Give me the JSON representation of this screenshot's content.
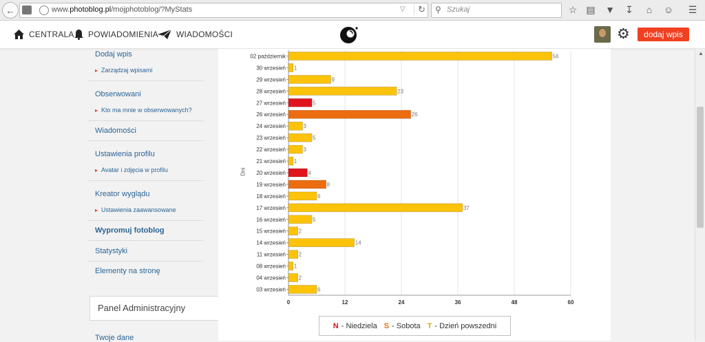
{
  "browser": {
    "url_prefix": "www.",
    "url_domain": "photoblog.pl",
    "url_path": "/mojphotoblog/?MyStats",
    "search_placeholder": "Szukaj"
  },
  "header": {
    "nav": [
      {
        "label": "CENTRALA",
        "icon": "home-icon"
      },
      {
        "label": "POWIADOMIENIA",
        "icon": "bell-icon"
      },
      {
        "label": "WIADOMOŚCI",
        "icon": "paper-plane-icon"
      }
    ],
    "add_button": "dodaj wpis"
  },
  "sidebar": {
    "items": [
      {
        "label": "Dodaj wpis",
        "type": "link"
      },
      {
        "label": "Zarządzaj wpisami",
        "type": "sub"
      },
      {
        "label": "Obserwowani",
        "type": "link"
      },
      {
        "label": "Kto ma mnie w obserwowanych?",
        "type": "sub"
      },
      {
        "label": "Wiadomości",
        "type": "link"
      },
      {
        "label": "Ustawienia profilu",
        "type": "link"
      },
      {
        "label": "Avatar i zdjęcia w profilu",
        "type": "sub"
      },
      {
        "label": "Kreator wyglądu",
        "type": "link"
      },
      {
        "label": "Ustawienia zaawansowane",
        "type": "sub"
      },
      {
        "label": "Wypromuj fotoblog",
        "type": "link"
      },
      {
        "label": "Statystyki",
        "type": "link"
      },
      {
        "label": "Elementy na stronę",
        "type": "link"
      }
    ],
    "panel_title": "Panel Administracyjny",
    "more_link": "Twoje dane"
  },
  "chart_data": {
    "type": "bar",
    "orientation": "horizontal",
    "ylabel": "Dni",
    "xlim": [
      0,
      60
    ],
    "xticks": [
      0,
      12,
      24,
      36,
      48,
      60
    ],
    "grid": true,
    "categories": [
      "02 październik",
      "30 wrzesień",
      "29 wrzesień",
      "28 wrzesień",
      "27 wrzesień",
      "26 wrzesień",
      "24 wrzesień",
      "23 wrzesień",
      "22 wrzesień",
      "21 wrzesień",
      "20 wrzesień",
      "19 wrzesień",
      "18 wrzesień",
      "17 wrzesień",
      "16 wrzesień",
      "15 wrzesień",
      "14 wrzesień",
      "11 wrzesień",
      "08 wrzesień",
      "04 wrzesień",
      "03 wrzesień"
    ],
    "values": [
      56,
      1,
      9,
      23,
      5,
      26,
      3,
      5,
      3,
      1,
      4,
      8,
      6,
      37,
      5,
      2,
      14,
      2,
      1,
      2,
      6
    ],
    "day_types": [
      "T",
      "T",
      "T",
      "T",
      "N",
      "S",
      "T",
      "T",
      "T",
      "T",
      "N",
      "S",
      "T",
      "T",
      "T",
      "T",
      "T",
      "T",
      "T",
      "T",
      "T"
    ],
    "colors": {
      "N": "#e0141c",
      "S": "#ec6d10",
      "T": "#fcc30a"
    },
    "legend": [
      {
        "key": "N",
        "text": "- Niedziela",
        "color": "#e0141c"
      },
      {
        "key": "S",
        "text": "- Sobota",
        "color": "#ec6d10"
      },
      {
        "key": "T",
        "text": "- Dzień powszedni",
        "color": "#fcc30a"
      }
    ],
    "legend_position": "bottom"
  }
}
